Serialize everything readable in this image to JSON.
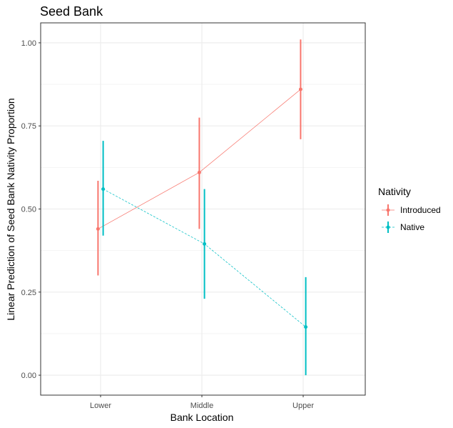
{
  "chart_data": {
    "type": "line",
    "title": "Seed Bank",
    "xlabel": "Bank Location",
    "ylabel": "Linear Prediction of Seed Bank Nativity Proportion",
    "categories": [
      "Lower",
      "Middle",
      "Upper"
    ],
    "ylim": [
      -0.06,
      1.06
    ],
    "yticks": [
      0.0,
      0.25,
      0.5,
      0.75,
      1.0
    ],
    "ytick_labels": [
      "0.00",
      "0.25",
      "0.50",
      "0.75",
      "1.00"
    ],
    "grid": true,
    "legend": {
      "title": "Nativity",
      "position": "right"
    },
    "series": [
      {
        "name": "Introduced",
        "color": "#F8766D",
        "line_style": "solid",
        "values": [
          0.44,
          0.61,
          0.86
        ],
        "lower": [
          0.3,
          0.44,
          0.71
        ],
        "upper": [
          0.585,
          0.775,
          1.01
        ]
      },
      {
        "name": "Native",
        "color": "#00BFC4",
        "line_style": "dashed",
        "values": [
          0.56,
          0.395,
          0.145
        ],
        "lower": [
          0.42,
          0.23,
          0.0
        ],
        "upper": [
          0.705,
          0.56,
          0.295
        ]
      }
    ]
  }
}
